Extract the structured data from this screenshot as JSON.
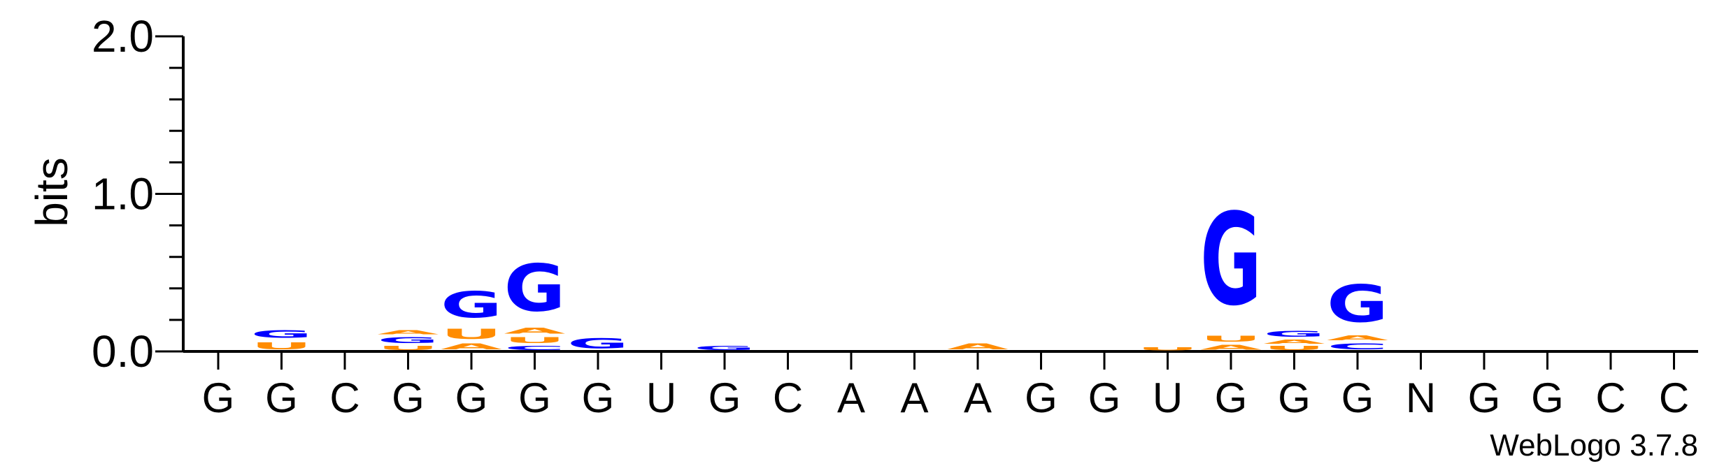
{
  "chart_data": {
    "type": "sequence-logo",
    "title": "",
    "xlabel": "",
    "ylabel": "bits",
    "ylim": [
      0,
      2.0
    ],
    "y_ticks": [
      "0.0",
      "1.0",
      "2.0"
    ],
    "colors": {
      "G": "#0000ff",
      "C": "#0000ff",
      "A": "#ff8c00",
      "U": "#ff8c00"
    },
    "positions": [
      {
        "label": "G",
        "stack": []
      },
      {
        "label": "G",
        "stack": [
          {
            "letter": "U",
            "height": 0.07
          },
          {
            "letter": "G",
            "height": 0.08
          }
        ]
      },
      {
        "label": "C",
        "stack": []
      },
      {
        "label": "G",
        "stack": [
          {
            "letter": "U",
            "height": 0.04
          },
          {
            "letter": "G",
            "height": 0.06
          },
          {
            "letter": "A",
            "height": 0.04
          }
        ]
      },
      {
        "label": "G",
        "stack": [
          {
            "letter": "A",
            "height": 0.06
          },
          {
            "letter": "U",
            "height": 0.1
          },
          {
            "letter": "G",
            "height": 0.27
          }
        ]
      },
      {
        "label": "G",
        "stack": [
          {
            "letter": "C",
            "height": 0.04
          },
          {
            "letter": "U",
            "height": 0.06
          },
          {
            "letter": "A",
            "height": 0.06
          },
          {
            "letter": "G",
            "height": 0.48
          }
        ]
      },
      {
        "label": "G",
        "stack": [
          {
            "letter": "G",
            "height": 0.1
          }
        ]
      },
      {
        "label": "U",
        "stack": []
      },
      {
        "label": "G",
        "stack": [
          {
            "letter": "G",
            "height": 0.04
          }
        ]
      },
      {
        "label": "C",
        "stack": []
      },
      {
        "label": "A",
        "stack": []
      },
      {
        "label": "A",
        "stack": []
      },
      {
        "label": "A",
        "stack": [
          {
            "letter": "A",
            "height": 0.06
          }
        ]
      },
      {
        "label": "G",
        "stack": []
      },
      {
        "label": "G",
        "stack": []
      },
      {
        "label": "U",
        "stack": [
          {
            "letter": "U",
            "height": 0.03
          }
        ]
      },
      {
        "label": "G",
        "stack": [
          {
            "letter": "A",
            "height": 0.05
          },
          {
            "letter": "U",
            "height": 0.06
          },
          {
            "letter": "G",
            "height": 0.94
          }
        ]
      },
      {
        "label": "G",
        "stack": [
          {
            "letter": "U",
            "height": 0.04
          },
          {
            "letter": "A",
            "height": 0.04
          },
          {
            "letter": "G",
            "height": 0.06
          }
        ]
      },
      {
        "label": "G",
        "stack": [
          {
            "letter": "C",
            "height": 0.06
          },
          {
            "letter": "A",
            "height": 0.05
          },
          {
            "letter": "G",
            "height": 0.38
          }
        ]
      },
      {
        "label": "N",
        "stack": []
      },
      {
        "label": "G",
        "stack": []
      },
      {
        "label": "G",
        "stack": []
      },
      {
        "label": "C",
        "stack": []
      },
      {
        "label": "C",
        "stack": []
      }
    ],
    "grid": false,
    "legend": "none"
  },
  "credit": "WebLogo 3.7.8"
}
